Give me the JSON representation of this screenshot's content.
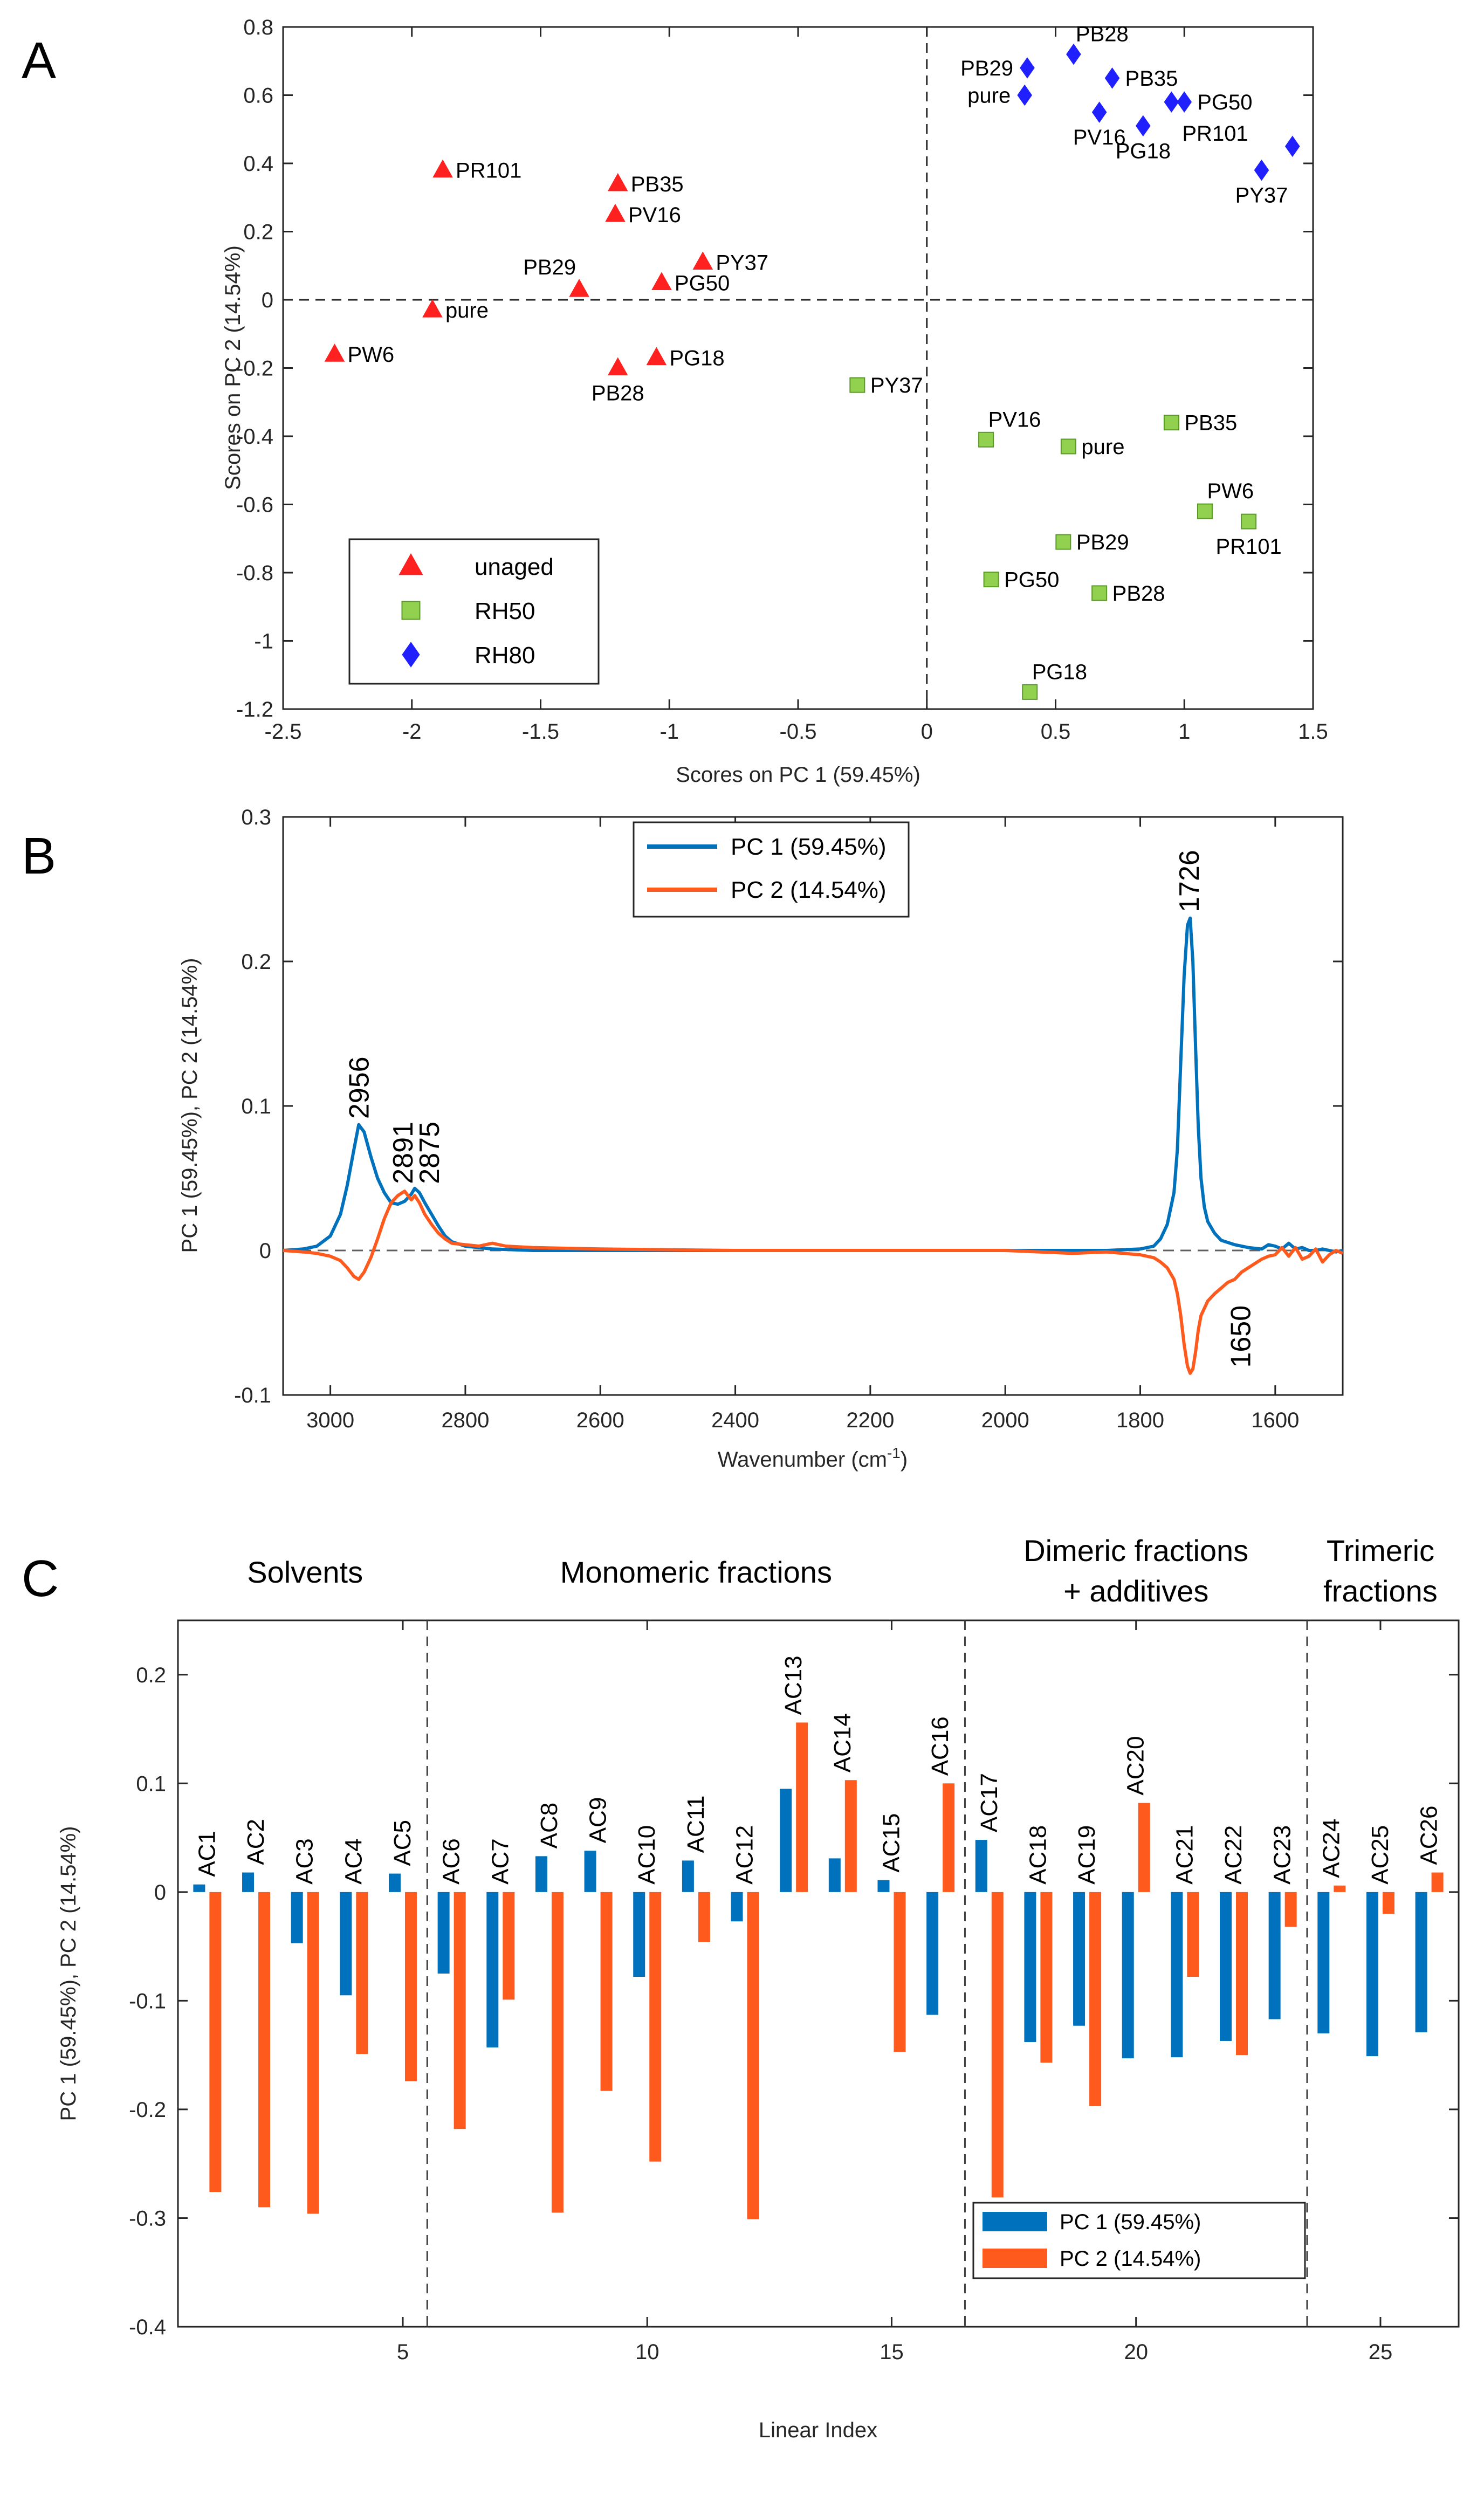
{
  "figure": {
    "panels": [
      "A",
      "B",
      "C"
    ]
  },
  "chart_data": [
    {
      "id": "A",
      "type": "scatter",
      "title": "",
      "xlabel": "Scores on PC 1 (59.45%)",
      "ylabel": "Scores on PC 2 (14.54%)",
      "xlim": [
        -2.5,
        1.5
      ],
      "ylim": [
        -1.2,
        0.8
      ],
      "xticks": [
        -2.5,
        -2,
        -1.5,
        -1,
        -0.5,
        0,
        0.5,
        1,
        1.5
      ],
      "xtick_labels": [
        "-2.5",
        "-2",
        "-1.5",
        "-1",
        "-0.5",
        "0",
        "0.5",
        "1",
        "1.5"
      ],
      "yticks": [
        0.8,
        0.6,
        0.4,
        0.2,
        0,
        -0.2,
        -0.4,
        -0.6,
        -0.8,
        -1,
        -1.2
      ],
      "ytick_labels": [
        "0.8",
        "0.6",
        "0.4",
        "0.2",
        "0",
        "-0.2",
        "-0.4",
        "-0.6",
        "-0.8",
        "-1",
        "-1.2"
      ],
      "legend_position": "bottom-left",
      "colors": {
        "unaged": "#ff2020",
        "RH50": "#92d050",
        "RH80": "#2020ff"
      },
      "series": [
        {
          "name": "unaged",
          "marker": "triangle",
          "points": [
            {
              "label": "PR101",
              "x": -1.88,
              "y": 0.38,
              "lpos": "r"
            },
            {
              "label": "PB35",
              "x": -1.2,
              "y": 0.34,
              "lpos": "r"
            },
            {
              "label": "PV16",
              "x": -1.21,
              "y": 0.25,
              "lpos": "r"
            },
            {
              "label": "PB29",
              "x": -1.35,
              "y": 0.03,
              "lpos": "tl"
            },
            {
              "label": "PY37",
              "x": -0.87,
              "y": 0.11,
              "lpos": "r"
            },
            {
              "label": "PG50",
              "x": -1.03,
              "y": 0.05,
              "lpos": "r"
            },
            {
              "label": "pure",
              "x": -1.92,
              "y": -0.03,
              "lpos": "r"
            },
            {
              "label": "PW6",
              "x": -2.3,
              "y": -0.16,
              "lpos": "r"
            },
            {
              "label": "PG18",
              "x": -1.05,
              "y": -0.17,
              "lpos": "r"
            },
            {
              "label": "PB28",
              "x": -1.2,
              "y": -0.2,
              "lpos": "b"
            }
          ]
        },
        {
          "name": "RH50",
          "marker": "square",
          "points": [
            {
              "label": "PY37",
              "x": -0.27,
              "y": -0.25,
              "lpos": "r"
            },
            {
              "label": "PV16",
              "x": 0.23,
              "y": -0.41,
              "lpos": "tr"
            },
            {
              "label": "pure",
              "x": 0.55,
              "y": -0.43,
              "lpos": "r"
            },
            {
              "label": "PB35",
              "x": 0.95,
              "y": -0.36,
              "lpos": "r"
            },
            {
              "label": "PW6",
              "x": 1.08,
              "y": -0.62,
              "lpos": "tr"
            },
            {
              "label": "PR101",
              "x": 1.25,
              "y": -0.65,
              "lpos": "b"
            },
            {
              "label": "PB29",
              "x": 0.53,
              "y": -0.71,
              "lpos": "r"
            },
            {
              "label": "PG50",
              "x": 0.25,
              "y": -0.82,
              "lpos": "r"
            },
            {
              "label": "PB28",
              "x": 0.67,
              "y": -0.86,
              "lpos": "r"
            },
            {
              "label": "PG18",
              "x": 0.4,
              "y": -1.15,
              "lpos": "tr"
            }
          ]
        },
        {
          "name": "RH80",
          "marker": "diamond",
          "points": [
            {
              "label": "PB28",
              "x": 0.57,
              "y": 0.72,
              "lpos": "tr"
            },
            {
              "label": "PB29",
              "x": 0.39,
              "y": 0.68,
              "lpos": "l"
            },
            {
              "label": "PB35",
              "x": 0.72,
              "y": 0.65,
              "lpos": "r"
            },
            {
              "label": "pure",
              "x": 0.38,
              "y": 0.6,
              "lpos": "l"
            },
            {
              "label": "PG50",
              "x": 1.0,
              "y": 0.58,
              "lpos": "r"
            },
            {
              "label": "PV16",
              "x": 0.67,
              "y": 0.55,
              "lpos": "b"
            },
            {
              "label": "PG18",
              "x": 0.84,
              "y": 0.51,
              "lpos": "b"
            },
            {
              "label": "PR101",
              "x": 0.95,
              "y": 0.58,
              "lpos": "bb"
            },
            {
              "label": "PY37",
              "x": 1.3,
              "y": 0.38,
              "lpos": "b"
            },
            {
              "label": "",
              "x": 1.42,
              "y": 0.45,
              "lpos": "r"
            }
          ]
        }
      ]
    },
    {
      "id": "B",
      "type": "line",
      "title": "",
      "xlabel": "Wavenumber (cm",
      "xlabel_sup": "-1",
      "xlabel_end": ")",
      "ylabel": "PC 1 (59.45%), PC 2 (14.54%)",
      "xlim": [
        3070,
        1500
      ],
      "ylim": [
        -0.1,
        0.3
      ],
      "xticks": [
        3000,
        2800,
        2600,
        2400,
        2200,
        2000,
        1800,
        1600
      ],
      "xtick_labels": [
        "3000",
        "2800",
        "2600",
        "2400",
        "2200",
        "2000",
        "1800",
        "1600"
      ],
      "yticks": [
        0.3,
        0.2,
        0.1,
        0,
        -0.1
      ],
      "ytick_labels": [
        "0.3",
        "0.2",
        "0.1",
        "0",
        "-0.1"
      ],
      "legend_position": "top-center",
      "series": [
        {
          "name": "PC 1 (59.45%)",
          "color": "#0072bd",
          "x": [
            3070,
            3040,
            3020,
            3000,
            2985,
            2975,
            2965,
            2958,
            2950,
            2940,
            2930,
            2920,
            2910,
            2900,
            2890,
            2880,
            2875,
            2868,
            2860,
            2850,
            2840,
            2830,
            2820,
            2800,
            2760,
            2700,
            2600,
            2400,
            2200,
            2000,
            1850,
            1800,
            1780,
            1770,
            1760,
            1750,
            1745,
            1740,
            1735,
            1730,
            1726,
            1722,
            1718,
            1714,
            1710,
            1705,
            1700,
            1690,
            1680,
            1660,
            1640,
            1620,
            1610,
            1600,
            1590,
            1580,
            1570,
            1560,
            1550,
            1540,
            1530,
            1520,
            1510,
            1500
          ],
          "y": [
            0,
            0.001,
            0.003,
            0.01,
            0.025,
            0.045,
            0.07,
            0.087,
            0.082,
            0.065,
            0.05,
            0.04,
            0.033,
            0.032,
            0.034,
            0.039,
            0.043,
            0.04,
            0.033,
            0.025,
            0.017,
            0.01,
            0.006,
            0.003,
            0.001,
            0,
            0,
            0,
            0,
            0,
            0,
            0.001,
            0.003,
            0.008,
            0.018,
            0.04,
            0.07,
            0.13,
            0.19,
            0.225,
            0.23,
            0.2,
            0.14,
            0.085,
            0.05,
            0.03,
            0.02,
            0.012,
            0.007,
            0.004,
            0.002,
            0.001,
            0.004,
            0.003,
            0.001,
            0.005,
            0.001,
            0.002,
            0,
            0,
            0.001,
            0,
            -0.001,
            0
          ]
        },
        {
          "name": "PC 2 (14.54%)",
          "color": "#ff5a1e",
          "x": [
            3070,
            3040,
            3020,
            3000,
            2985,
            2975,
            2965,
            2958,
            2950,
            2940,
            2930,
            2920,
            2910,
            2900,
            2890,
            2880,
            2875,
            2868,
            2860,
            2850,
            2840,
            2830,
            2820,
            2800,
            2780,
            2760,
            2740,
            2700,
            2600,
            2400,
            2200,
            2000,
            1900,
            1850,
            1800,
            1780,
            1770,
            1760,
            1750,
            1745,
            1740,
            1735,
            1730,
            1726,
            1722,
            1718,
            1714,
            1710,
            1705,
            1700,
            1690,
            1680,
            1670,
            1660,
            1650,
            1640,
            1630,
            1620,
            1610,
            1600,
            1590,
            1580,
            1570,
            1560,
            1550,
            1540,
            1530,
            1520,
            1510,
            1500
          ],
          "y": [
            0,
            -0.001,
            -0.002,
            -0.004,
            -0.007,
            -0.012,
            -0.018,
            -0.02,
            -0.015,
            -0.005,
            0.008,
            0.022,
            0.033,
            0.038,
            0.041,
            0.035,
            0.038,
            0.033,
            0.025,
            0.018,
            0.012,
            0.008,
            0.005,
            0.004,
            0.003,
            0.005,
            0.003,
            0.002,
            0.001,
            0,
            0,
            0,
            -0.002,
            -0.001,
            -0.003,
            -0.005,
            -0.008,
            -0.012,
            -0.02,
            -0.03,
            -0.045,
            -0.065,
            -0.08,
            -0.085,
            -0.082,
            -0.07,
            -0.055,
            -0.045,
            -0.04,
            -0.035,
            -0.03,
            -0.026,
            -0.022,
            -0.02,
            -0.015,
            -0.012,
            -0.009,
            -0.006,
            -0.004,
            -0.003,
            0.002,
            -0.004,
            0.002,
            -0.006,
            -0.004,
            0.001,
            -0.008,
            -0.003,
            0,
            -0.002
          ]
        }
      ],
      "annotations": [
        {
          "text": "2956",
          "x": 2956,
          "y": 0.091,
          "rotate": -90
        },
        {
          "text": "2891",
          "x": 2891,
          "y": 0.046,
          "rotate": -90
        },
        {
          "text": "2875",
          "x": 2852,
          "y": 0.046,
          "rotate": -90
        },
        {
          "text": "1726",
          "x": 1726,
          "y": 0.234,
          "rotate": -90
        },
        {
          "text": "1650",
          "x": 1650,
          "y": -0.038,
          "rotate": -90,
          "anchor": "end"
        }
      ]
    },
    {
      "id": "C",
      "type": "bar",
      "title": "",
      "xlabel": "Linear Index",
      "ylabel": "PC 1 (59.45%), PC 2 (14.54%)",
      "xlim": [
        0.4,
        26.6
      ],
      "ylim": [
        -0.4,
        0.25
      ],
      "xticks": [
        5,
        10,
        15,
        20,
        25
      ],
      "xtick_labels": [
        "5",
        "10",
        "15",
        "20",
        "25"
      ],
      "yticks": [
        0.2,
        0.1,
        0,
        -0.1,
        -0.2,
        -0.3,
        -0.4
      ],
      "ytick_labels": [
        "0.2",
        "0.1",
        "0",
        "-0.1",
        "-0.2",
        "-0.3",
        "-0.4"
      ],
      "legend_position": "bottom-right",
      "section_dividers": [
        5.5,
        16.5,
        23.5
      ],
      "sections": [
        {
          "lines": [
            "Solvents"
          ],
          "x": 3
        },
        {
          "lines": [
            "Monomeric fractions"
          ],
          "x": 11
        },
        {
          "lines": [
            "Dimeric fractions",
            "+ additives"
          ],
          "x": 20
        },
        {
          "lines": [
            "Trimeric",
            "fractions"
          ],
          "x": 25
        }
      ],
      "categories": [
        "AC1",
        "AC2",
        "AC3",
        "AC4",
        "AC5",
        "AC6",
        "AC7",
        "AC8",
        "AC9",
        "AC10",
        "AC11",
        "AC12",
        "AC13",
        "AC14",
        "AC15",
        "AC16",
        "AC17",
        "AC18",
        "AC19",
        "AC20",
        "AC21",
        "AC22",
        "AC23",
        "AC24",
        "AC25",
        "AC26"
      ],
      "series": [
        {
          "name": "PC 1 (59.45%)",
          "color": "#0072bd",
          "values": [
            0.007,
            0.018,
            -0.047,
            -0.095,
            0.017,
            -0.075,
            -0.143,
            0.033,
            0.038,
            -0.078,
            0.029,
            -0.027,
            0.095,
            0.031,
            0.011,
            -0.113,
            0.048,
            -0.138,
            -0.123,
            -0.153,
            -0.152,
            -0.137,
            -0.117,
            -0.13,
            -0.151,
            -0.129
          ]
        },
        {
          "name": "PC 2 (14.54%)",
          "color": "#ff5a1e",
          "values": [
            -0.276,
            -0.29,
            -0.296,
            -0.149,
            -0.174,
            -0.218,
            -0.099,
            -0.295,
            -0.183,
            -0.248,
            -0.046,
            -0.301,
            0.156,
            0.103,
            -0.147,
            0.1,
            -0.281,
            -0.157,
            -0.197,
            0.082,
            -0.078,
            -0.15,
            -0.032,
            0.006,
            -0.02,
            0.018
          ]
        }
      ]
    }
  ]
}
